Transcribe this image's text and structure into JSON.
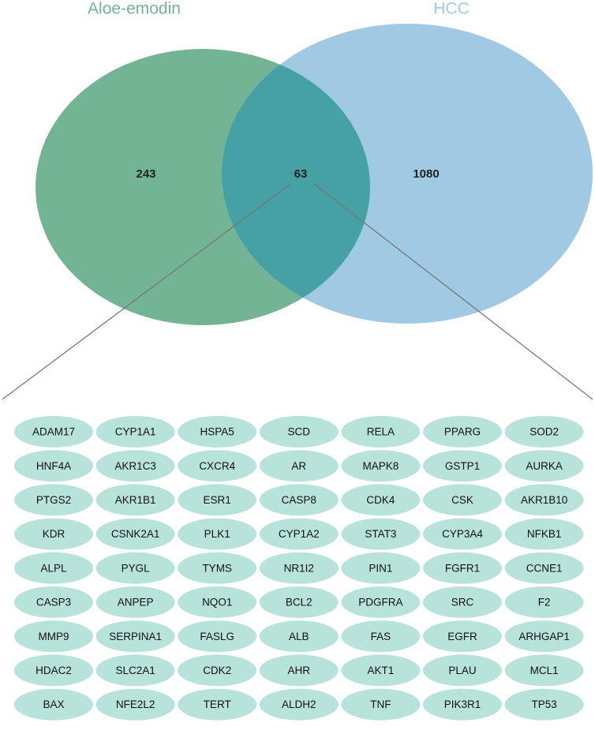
{
  "venn": {
    "sets": [
      {
        "label": "Aloe-emodin",
        "count": 243
      },
      {
        "label": "HCC",
        "count": 1080
      }
    ],
    "overlap_count": 63
  },
  "genes": {
    "rows": [
      [
        "ADAM17",
        "CYP1A1",
        "HSPA5",
        "SCD",
        "RELA",
        "PPARG",
        "SOD2"
      ],
      [
        "HNF4A",
        "AKR1C3",
        "CXCR4",
        "AR",
        "MAPK8",
        "GSTP1",
        "AURKA"
      ],
      [
        "PTGS2",
        "AKR1B1",
        "ESR1",
        "CASP8",
        "CDK4",
        "CSK",
        "AKR1B10"
      ],
      [
        "KDR",
        "CSNK2A1",
        "PLK1",
        "CYP1A2",
        "STAT3",
        "CYP3A4",
        "NFKB1"
      ],
      [
        "ALPL",
        "PYGL",
        "TYMS",
        "NR1I2",
        "PIN1",
        "FGFR1",
        "CCNE1"
      ],
      [
        "CASP3",
        "ANPEP",
        "NQO1",
        "BCL2",
        "PDGFRA",
        "SRC",
        "F2"
      ],
      [
        "MMP9",
        "SERPINA1",
        "FASLG",
        "ALB",
        "FAS",
        "EGFR",
        "ARHGAP1"
      ],
      [
        "HDAC2",
        "SLC2A1",
        "CDK2",
        "AHR",
        "AKT1",
        "PLAU",
        "MCL1"
      ],
      [
        "BAX",
        "NFE2L2",
        "TERT",
        "ALDH2",
        "TNF",
        "PIK3R1",
        "TP53"
      ]
    ]
  }
}
